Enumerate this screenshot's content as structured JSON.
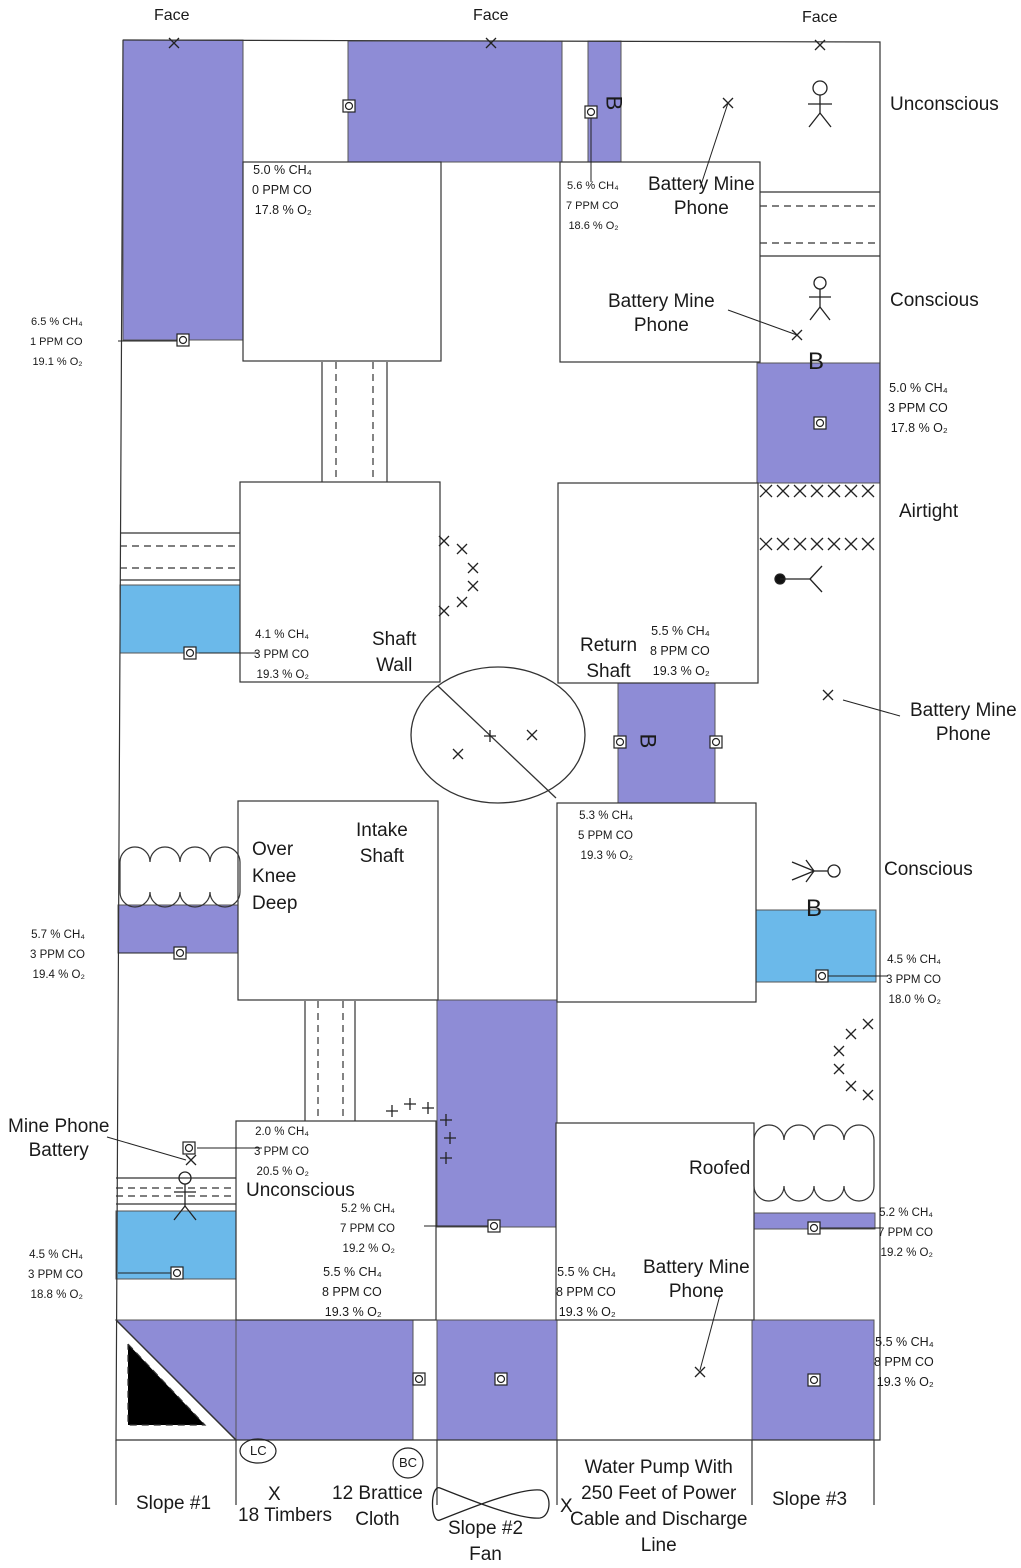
{
  "colors": {
    "fresh_air": "#8e8cd6",
    "water": "#6bb9ea",
    "line": "#333333"
  },
  "icons": [
    "person-icon",
    "person-lying-icon",
    "sampling-point-icon",
    "crosscut-x-icon",
    "barricade-B-icon",
    "mine-phone-icon",
    "brattice-curtain-icon",
    "fan-icon",
    "caved-area-icon"
  ],
  "faces": [
    "Face",
    "Face",
    "Face"
  ],
  "status": {
    "unconscious_top": "Unconscious",
    "conscious_mid": "Conscious",
    "airtight": "Airtight",
    "conscious_low": "Conscious",
    "unconscious_low": "Unconscious",
    "roofed": "Roofed"
  },
  "phones": {
    "p1": [
      "Battery Mine",
      "Phone"
    ],
    "p2": [
      "Battery Mine",
      "Phone"
    ],
    "p3": [
      "Battery Mine",
      "Phone"
    ],
    "p4": [
      "Mine Phone",
      "Battery"
    ],
    "p5": [
      "Battery Mine",
      "Phone"
    ]
  },
  "areas": {
    "shaft_wall": [
      "Shaft",
      "Wall"
    ],
    "return_shaft": [
      "Return",
      "Shaft"
    ],
    "intake_shaft": [
      "Intake",
      "Shaft"
    ],
    "over_knee": [
      "Over",
      "Knee",
      "Deep"
    ]
  },
  "bottom": {
    "slope1": "Slope #1",
    "lc": "LC",
    "timbers_x": "X",
    "timbers": "18 Timbers",
    "bc": "BC",
    "brattice": [
      "12 Brattice",
      "Cloth"
    ],
    "slope2": [
      "Slope #2",
      "Fan"
    ],
    "pump_x": "X",
    "pump": [
      "Water Pump With",
      "250 Feet of Power",
      "Cable and Discharge",
      "Line"
    ],
    "slope3": "Slope #3"
  },
  "readings": {
    "r1": [
      "5.0 % CH₄",
      "0 PPM CO",
      "17.8 % O₂"
    ],
    "r2": [
      "5.6 % CH₄",
      "7 PPM CO",
      "18.6 % O₂"
    ],
    "r3": [
      "6.5 % CH₄",
      "1 PPM CO",
      "19.1 % O₂"
    ],
    "r4": [
      "5.0 % CH₄",
      "3 PPM CO",
      "17.8 % O₂"
    ],
    "r5": [
      "4.1 % CH₄",
      "3 PPM CO",
      "19.3 % O₂"
    ],
    "r6": [
      "5.5 % CH₄",
      "8 PPM CO",
      "19.3 % O₂"
    ],
    "r7": [
      "5.3 % CH₄",
      "5 PPM CO",
      "19.3 % O₂"
    ],
    "r8": [
      "5.7 % CH₄",
      "3 PPM CO",
      "19.4 % O₂"
    ],
    "r9": [
      "4.5 % CH₄",
      "3 PPM CO",
      "18.0 % O₂"
    ],
    "r10": [
      "2.0 % CH₄",
      "3 PPM CO",
      "20.5 % O₂"
    ],
    "r11": [
      "5.2 % CH₄",
      "7 PPM CO",
      "19.2 % O₂"
    ],
    "r12": [
      "4.5 % CH₄",
      "3 PPM CO",
      "18.8 % O₂"
    ],
    "r13": [
      "5.5 % CH₄",
      "8 PPM CO",
      "19.3 % O₂"
    ],
    "r14": [
      "5.5 % CH₄",
      "8 PPM CO",
      "19.3 % O₂"
    ],
    "r15": [
      "5.2 % CH₄",
      "7 PPM CO",
      "19.2 % O₂"
    ],
    "r16": [
      "5.5 % CH₄",
      "8 PPM CO",
      "19.3 % O₂"
    ]
  },
  "barricade_letter": "B"
}
